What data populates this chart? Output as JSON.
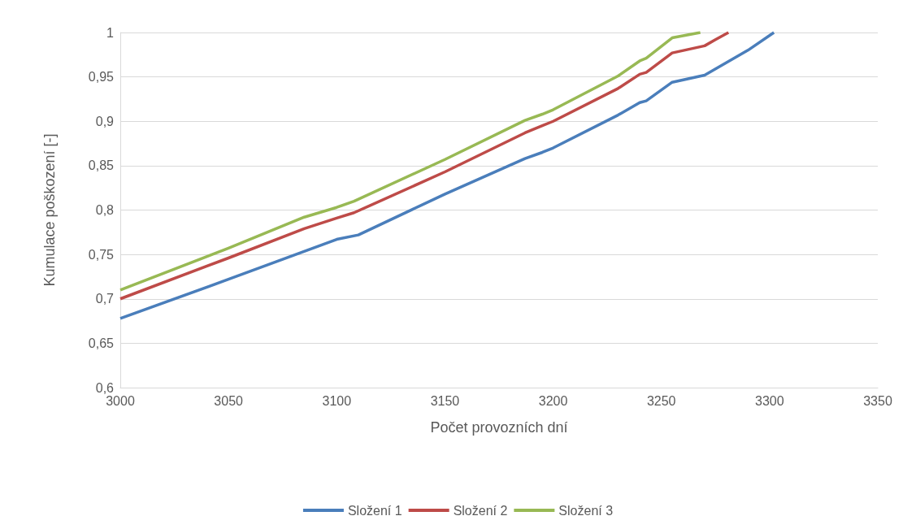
{
  "chart_data": {
    "type": "line",
    "xlabel": "Počet provozních dní",
    "ylabel": "Kumulace poškození [-]",
    "xlim": [
      3000,
      3350
    ],
    "xticks": [
      3000,
      3050,
      3100,
      3150,
      3200,
      3250,
      3300,
      3350
    ],
    "ylim": [
      0.6,
      1
    ],
    "yticks": [
      {
        "value": 0.6,
        "label": "0,6"
      },
      {
        "value": 0.65,
        "label": "0,65"
      },
      {
        "value": 0.7,
        "label": "0,7"
      },
      {
        "value": 0.75,
        "label": "0,75"
      },
      {
        "value": 0.8,
        "label": "0,8"
      },
      {
        "value": 0.85,
        "label": "0,85"
      },
      {
        "value": 0.9,
        "label": "0,9"
      },
      {
        "value": 0.95,
        "label": "0,95"
      },
      {
        "value": 1,
        "label": "1"
      }
    ],
    "grid": "y",
    "legend": "bottom",
    "marker": "none",
    "line_style": "solid",
    "series": [
      {
        "name": "Složení 1",
        "color": "#4a7ebb",
        "x": [
          3000,
          3050,
          3100,
          3110,
          3150,
          3187,
          3195,
          3200,
          3230,
          3240,
          3243,
          3255,
          3270,
          3290,
          3302
        ],
        "values": [
          0.678,
          0.722,
          0.767,
          0.772,
          0.818,
          0.858,
          0.865,
          0.87,
          0.907,
          0.921,
          0.923,
          0.944,
          0.952,
          0.98,
          1.0
        ]
      },
      {
        "name": "Složení 2",
        "color": "#be4b48",
        "x": [
          3000,
          3050,
          3085,
          3100,
          3108,
          3150,
          3187,
          3195,
          3200,
          3230,
          3240,
          3243,
          3255,
          3270,
          3275,
          3281
        ],
        "values": [
          0.7,
          0.746,
          0.779,
          0.791,
          0.797,
          0.843,
          0.887,
          0.895,
          0.9,
          0.937,
          0.953,
          0.955,
          0.977,
          0.985,
          0.992,
          1.0
        ]
      },
      {
        "name": "Složení 3",
        "color": "#98b954",
        "x": [
          3000,
          3050,
          3085,
          3100,
          3108,
          3150,
          3187,
          3195,
          3200,
          3230,
          3240,
          3243,
          3255,
          3268
        ],
        "values": [
          0.71,
          0.757,
          0.792,
          0.803,
          0.81,
          0.857,
          0.901,
          0.908,
          0.913,
          0.951,
          0.968,
          0.971,
          0.994,
          1.0
        ]
      }
    ]
  }
}
